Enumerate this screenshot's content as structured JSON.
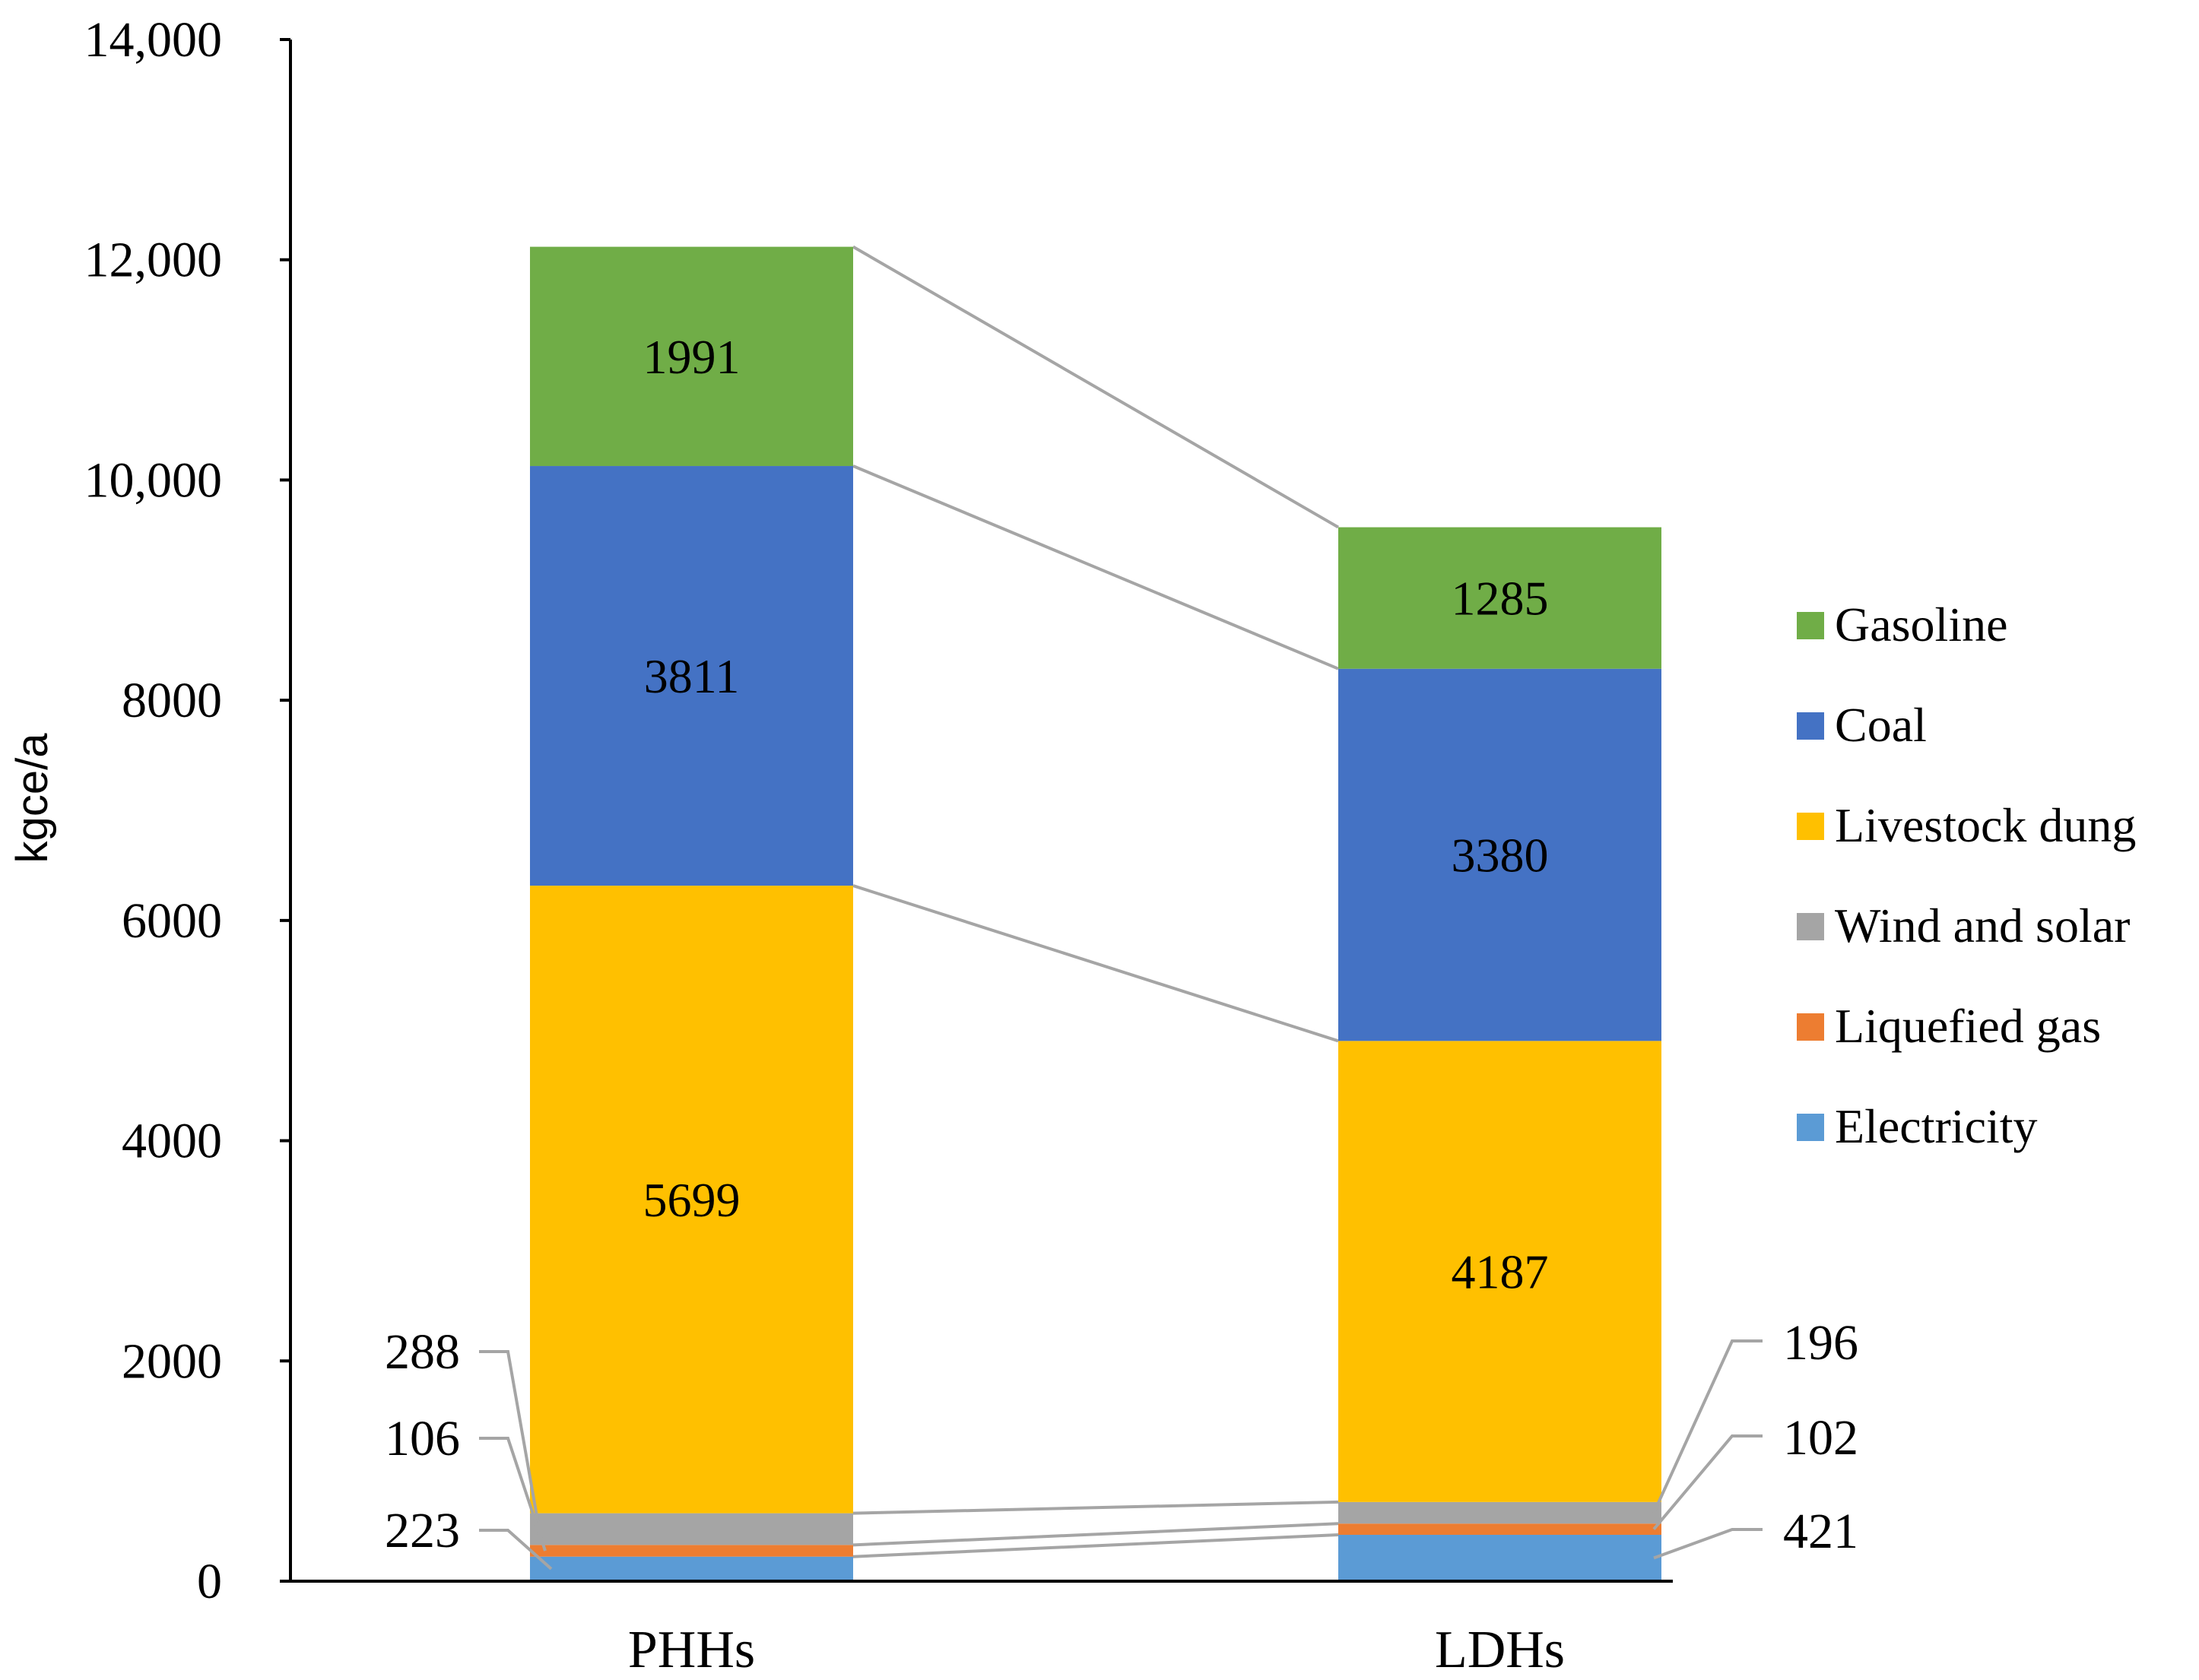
{
  "chart_data": {
    "type": "bar",
    "stacked": true,
    "title": "",
    "xlabel": "",
    "ylabel": "kgce/a",
    "ylim": [
      0,
      14000
    ],
    "yticks": [
      0,
      2000,
      4000,
      6000,
      8000,
      10000,
      12000,
      14000
    ],
    "ytick_labels": [
      "0",
      "2000",
      "4000",
      "6000",
      "8000",
      "10,000",
      "12,000",
      "14,000"
    ],
    "categories": [
      "PHHs",
      "LDHs"
    ],
    "series": [
      {
        "name": "Electricity",
        "color": "#5B9BD5",
        "values": [
          223,
          421
        ]
      },
      {
        "name": "Liquefied gas",
        "color": "#ED7D31",
        "values": [
          106,
          102
        ]
      },
      {
        "name": "Wind and solar",
        "color": "#A5A5A5",
        "values": [
          288,
          196
        ]
      },
      {
        "name": "Livestock dung",
        "color": "#FFC000",
        "values": [
          5699,
          4187
        ]
      },
      {
        "name": "Coal",
        "color": "#4472C4",
        "values": [
          3811,
          3380
        ]
      },
      {
        "name": "Gasoline",
        "color": "#70AD47",
        "values": [
          1991,
          1285
        ]
      }
    ],
    "legend": {
      "position": "right",
      "order": [
        "Gasoline",
        "Coal",
        "Livestock dung",
        "Wind and solar",
        "Liquefied gas",
        "Electricity"
      ]
    },
    "callouts": [
      {
        "category": "PHHs",
        "side": "left",
        "labels": [
          "288",
          "106",
          "223"
        ]
      },
      {
        "category": "LDHs",
        "side": "right",
        "labels": [
          "196",
          "102",
          "421"
        ]
      }
    ],
    "connector_color": "#A5A5A5"
  }
}
